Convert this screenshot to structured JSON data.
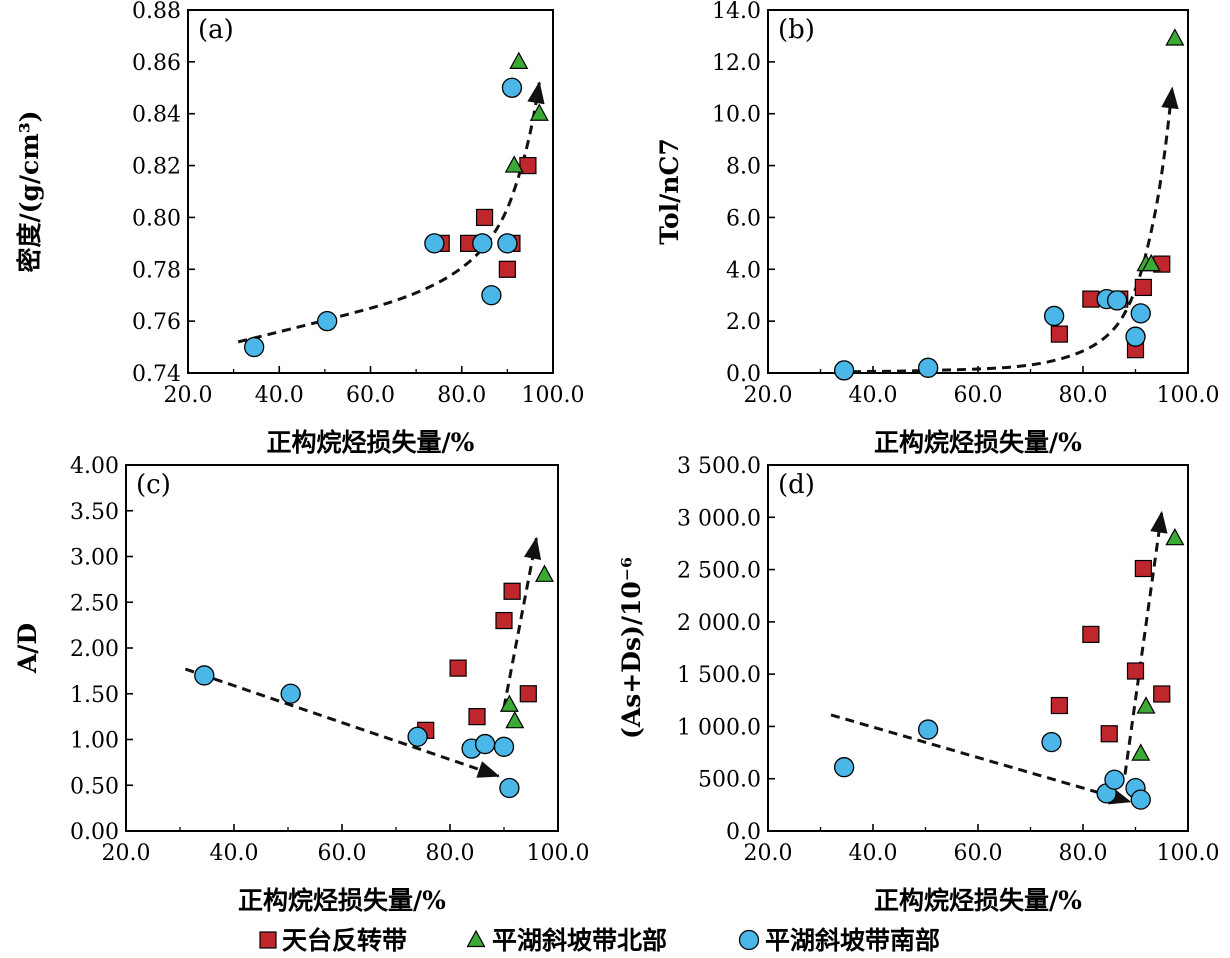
{
  "colors": {
    "square": "#c0272d",
    "triangle": "#3aaa35",
    "circle": "#4ab7e8",
    "stroke": "#000000"
  },
  "legend": [
    {
      "name": "天台反转带",
      "marker": "square"
    },
    {
      "name": "平湖斜坡带北部",
      "marker": "triangle"
    },
    {
      "name": "平湖斜坡带南部",
      "marker": "circle"
    }
  ],
  "chart_data": [
    {
      "type": "scatter",
      "label": "(a)",
      "xlabel": "正构烷烃损失量/%",
      "ylabel": "密度/(g/cm³)",
      "xlim": [
        20,
        100
      ],
      "ylim": [
        0.74,
        0.88
      ],
      "xticks": [
        "20.0",
        "40.0",
        "60.0",
        "80.0",
        "100.0"
      ],
      "yticks": [
        "0.74",
        "0.76",
        "0.78",
        "0.80",
        "0.82",
        "0.84",
        "0.86",
        "0.88"
      ],
      "series": [
        {
          "name": "天台反转带",
          "marker": "square",
          "points": [
            [
              75.5,
              0.79
            ],
            [
              81.5,
              0.79
            ],
            [
              85,
              0.8
            ],
            [
              90,
              0.78
            ],
            [
              91,
              0.79
            ],
            [
              94.5,
              0.82
            ]
          ]
        },
        {
          "name": "平湖斜坡带北部",
          "marker": "triangle",
          "points": [
            [
              92.5,
              0.86
            ],
            [
              97,
              0.84
            ],
            [
              91.5,
              0.82
            ]
          ]
        },
        {
          "name": "平湖斜坡带南部",
          "marker": "circle",
          "points": [
            [
              34.5,
              0.75
            ],
            [
              50.5,
              0.76
            ],
            [
              74,
              0.79
            ],
            [
              84.5,
              0.79
            ],
            [
              86.5,
              0.77
            ],
            [
              90,
              0.79
            ],
            [
              91,
              0.85
            ]
          ]
        }
      ],
      "trend_arrows": [
        [
          [
            31,
            0.752
          ],
          [
            52,
            0.761
          ],
          [
            70,
            0.77
          ],
          [
            82,
            0.782
          ],
          [
            89,
            0.798
          ],
          [
            93,
            0.818
          ],
          [
            95.5,
            0.836
          ],
          [
            97,
            0.852
          ]
        ]
      ]
    },
    {
      "type": "scatter",
      "label": "(b)",
      "xlabel": "正构烷烃损失量/%",
      "ylabel": "Tol/nC7",
      "xlim": [
        20,
        100
      ],
      "ylim": [
        0,
        14
      ],
      "xticks": [
        "20.0",
        "40.0",
        "60.0",
        "80.0",
        "100.0"
      ],
      "yticks": [
        "0.0",
        "2.0",
        "4.0",
        "6.0",
        "8.0",
        "10.0",
        "12.0",
        "14.0"
      ],
      "series": [
        {
          "name": "天台反转带",
          "marker": "square",
          "points": [
            [
              75.5,
              1.5
            ],
            [
              81.5,
              2.85
            ],
            [
              87,
              2.85
            ],
            [
              90,
              0.9
            ],
            [
              91.5,
              3.3
            ],
            [
              95,
              4.2
            ]
          ]
        },
        {
          "name": "平湖斜坡带北部",
          "marker": "triangle",
          "points": [
            [
              92,
              4.2
            ],
            [
              93,
              4.2
            ],
            [
              97.5,
              12.9
            ]
          ]
        },
        {
          "name": "平湖斜坡带南部",
          "marker": "circle",
          "points": [
            [
              34.5,
              0.1
            ],
            [
              50.5,
              0.2
            ],
            [
              74.5,
              2.2
            ],
            [
              84.5,
              2.85
            ],
            [
              86.5,
              2.8
            ],
            [
              90,
              1.4
            ],
            [
              91,
              2.3
            ]
          ]
        }
      ],
      "trend_arrows": [
        [
          [
            36,
            0.05
          ],
          [
            60,
            0.1
          ],
          [
            75,
            0.4
          ],
          [
            85,
            1.3
          ],
          [
            90,
            3.0
          ],
          [
            93.5,
            5.8
          ],
          [
            95.5,
            8.3
          ],
          [
            97,
            11
          ]
        ]
      ]
    },
    {
      "type": "scatter",
      "label": "(c)",
      "xlabel": "正构烷烃损失量/%",
      "ylabel": "A/D",
      "xlim": [
        20,
        100
      ],
      "ylim": [
        0,
        4
      ],
      "xticks": [
        "20.0",
        "40.0",
        "60.0",
        "80.0",
        "100.0"
      ],
      "yticks": [
        "0.00",
        "0.50",
        "1.00",
        "1.50",
        "2.00",
        "2.50",
        "3.00",
        "3.50",
        "4.00"
      ],
      "series": [
        {
          "name": "天台反转带",
          "marker": "square",
          "points": [
            [
              75.5,
              1.1
            ],
            [
              81.5,
              1.78
            ],
            [
              85,
              1.25
            ],
            [
              90,
              2.3
            ],
            [
              91.5,
              2.62
            ],
            [
              94.5,
              1.5
            ]
          ]
        },
        {
          "name": "平湖斜坡带北部",
          "marker": "triangle",
          "points": [
            [
              91,
              1.38
            ],
            [
              92,
              1.2
            ],
            [
              97.5,
              2.8
            ]
          ]
        },
        {
          "name": "平湖斜坡带南部",
          "marker": "circle",
          "points": [
            [
              34.5,
              1.7
            ],
            [
              50.5,
              1.5
            ],
            [
              74,
              1.03
            ],
            [
              84,
              0.9
            ],
            [
              86.5,
              0.95
            ],
            [
              90,
              0.92
            ],
            [
              91,
              0.47
            ]
          ]
        }
      ],
      "trend_arrows": [
        [
          [
            31,
            1.77
          ],
          [
            89,
            0.6
          ]
        ],
        [
          [
            90,
            1.35
          ],
          [
            96,
            3.2
          ]
        ]
      ]
    },
    {
      "type": "scatter",
      "label": "(d)",
      "xlabel": "正构烷烃损失量/%",
      "ylabel": "(As+Ds)/10⁻⁶",
      "xlim": [
        20,
        100
      ],
      "ylim": [
        0,
        3500
      ],
      "xticks": [
        "20.0",
        "40.0",
        "60.0",
        "80.0",
        "100.0"
      ],
      "yticks": [
        "0.0",
        "500.0",
        "1 000.0",
        "1 500.0",
        "2 000.0",
        "2 500.0",
        "3 000.0",
        "3 500.0"
      ],
      "series": [
        {
          "name": "天台反转带",
          "marker": "square",
          "points": [
            [
              75.5,
              1200
            ],
            [
              81.5,
              1880
            ],
            [
              85,
              930
            ],
            [
              90,
              1530
            ],
            [
              91.5,
              2510
            ],
            [
              95,
              1310
            ]
          ]
        },
        {
          "name": "平湖斜坡带北部",
          "marker": "triangle",
          "points": [
            [
              91,
              740
            ],
            [
              92,
              1190
            ],
            [
              97.5,
              2800
            ]
          ]
        },
        {
          "name": "平湖斜坡带南部",
          "marker": "circle",
          "points": [
            [
              34.5,
              610
            ],
            [
              50.5,
              970
            ],
            [
              74,
              850
            ],
            [
              84.5,
              360
            ],
            [
              86,
              490
            ],
            [
              90,
              410
            ],
            [
              91,
              300
            ]
          ]
        }
      ],
      "trend_arrows": [
        [
          [
            32,
            1110
          ],
          [
            89,
            280
          ]
        ],
        [
          [
            88,
            540
          ],
          [
            95,
            3050
          ]
        ]
      ]
    }
  ]
}
